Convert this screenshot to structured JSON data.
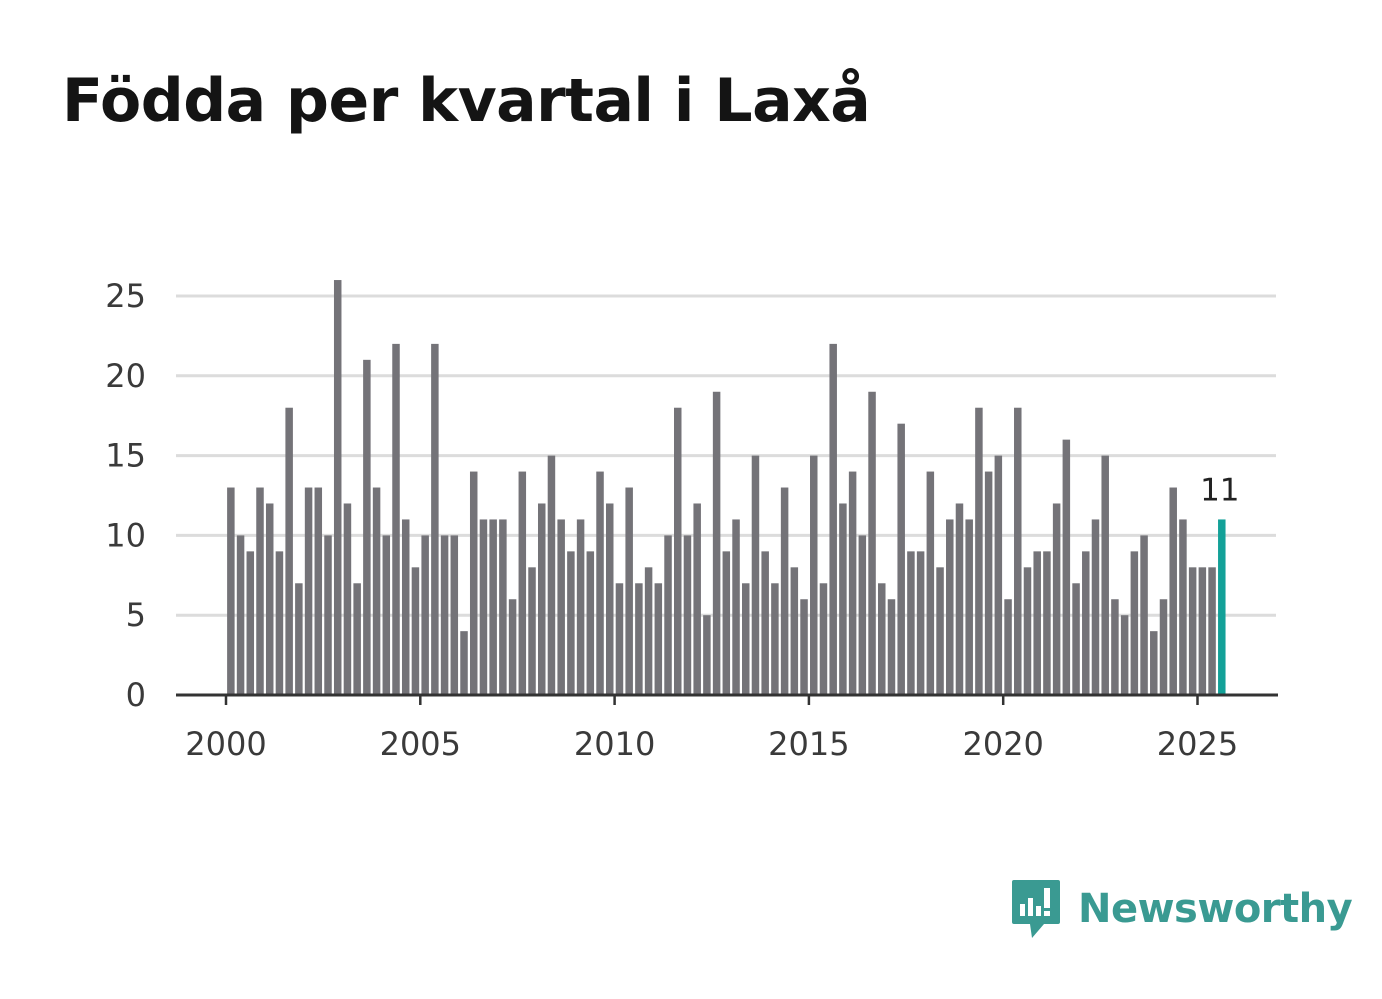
{
  "title": "Födda per kvartal i Laxå",
  "brand": {
    "name": "Newsworthy"
  },
  "colors": {
    "bar": "#747378",
    "highlight": "#13a198",
    "grid": "#dcdcdc",
    "axis": "#333333",
    "brand": "#3a9a92"
  },
  "chart_data": {
    "type": "bar",
    "title": "Födda per kvartal i Laxå",
    "xlabel": "",
    "ylabel": "",
    "ylim": [
      0,
      25
    ],
    "yticks": [
      0,
      5,
      10,
      15,
      20,
      25
    ],
    "xticks": [
      "2000",
      "2005",
      "2010",
      "2015",
      "2020",
      "2025"
    ],
    "first_year": 2000,
    "grid": true,
    "highlight_last": true,
    "last_value_label": "11",
    "values": [
      13,
      10,
      9,
      13,
      12,
      9,
      18,
      7,
      13,
      13,
      10,
      26,
      12,
      7,
      21,
      13,
      10,
      22,
      11,
      8,
      10,
      22,
      10,
      10,
      4,
      14,
      11,
      11,
      11,
      6,
      14,
      8,
      12,
      15,
      11,
      9,
      11,
      9,
      14,
      12,
      7,
      13,
      7,
      8,
      7,
      10,
      18,
      10,
      12,
      5,
      19,
      9,
      11,
      7,
      15,
      9,
      7,
      13,
      8,
      6,
      15,
      7,
      22,
      12,
      14,
      10,
      19,
      7,
      6,
      17,
      9,
      9,
      14,
      8,
      11,
      12,
      11,
      18,
      14,
      15,
      6,
      18,
      8,
      9,
      9,
      12,
      16,
      7,
      9,
      11,
      15,
      6,
      5,
      9,
      10,
      4,
      6,
      13,
      11,
      8,
      8,
      8,
      11
    ]
  }
}
